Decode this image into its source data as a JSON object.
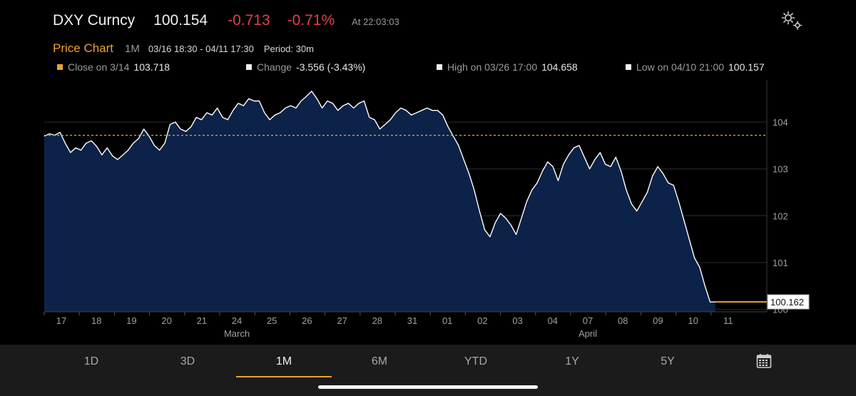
{
  "header": {
    "ticker": "DXY Curncy",
    "last_price": "100.154",
    "change": "-0.713",
    "change_pct": "-0.71%",
    "as_of": "At 22:03:03",
    "settings_icon": "gear-icon"
  },
  "subheader": {
    "title": "Price Chart",
    "range": "1M",
    "dates": "03/16 18:30 - 04/11 17:30",
    "period": "Period: 30m"
  },
  "stats": {
    "close_label": "Close on 3/14",
    "close_value": "103.718",
    "change_label": "Change",
    "change_value": "-3.556 (-3.43%)",
    "high_label": "High on 03/26 17:00",
    "high_value": "104.658",
    "low_label": "Low on 04/10 21:00",
    "low_value": "100.157"
  },
  "colors": {
    "background": "#000000",
    "area_fill": "#0c2248",
    "line": "#ffffff",
    "accent_orange": "#f0a030",
    "negative_red": "#e0404c"
  },
  "chart_data": {
    "type": "area",
    "x_tick_labels": [
      "17",
      "18",
      "19",
      "20",
      "21",
      "24",
      "25",
      "26",
      "27",
      "28",
      "31",
      "01",
      "02",
      "03",
      "04",
      "07",
      "08",
      "09",
      "10",
      "11"
    ],
    "x_month_labels": [
      {
        "label": "March",
        "at": "24"
      },
      {
        "label": "April",
        "at": "07"
      }
    ],
    "y_tick_labels": [
      "100",
      "101",
      "102",
      "103",
      "104"
    ],
    "ylim": [
      99.95,
      104.9
    ],
    "reference_line": {
      "label": "Close on 3/14",
      "value": 103.718,
      "style": "dashed-orange"
    },
    "last_value_label": "100.162",
    "last_value": 100.162,
    "grid": true,
    "series": [
      {
        "values": [
          103.7,
          103.75,
          103.72,
          103.78,
          103.55,
          103.35,
          103.45,
          103.4,
          103.55,
          103.6,
          103.48,
          103.3,
          103.45,
          103.28,
          103.2,
          103.3,
          103.4,
          103.55,
          103.65,
          103.85,
          103.7,
          103.5,
          103.4,
          103.55,
          103.95,
          104.0,
          103.85,
          103.8,
          103.9,
          104.1,
          104.05,
          104.2,
          104.15,
          104.3,
          104.1,
          104.05,
          104.25,
          104.4,
          104.35,
          104.5,
          104.45,
          104.45,
          104.2,
          104.05,
          104.15,
          104.2,
          104.3,
          104.35,
          104.3,
          104.45,
          104.55,
          104.658,
          104.5,
          104.3,
          104.45,
          104.4,
          104.25,
          104.35,
          104.4,
          104.3,
          104.4,
          104.45,
          104.1,
          104.05,
          103.85,
          103.95,
          104.05,
          104.2,
          104.3,
          104.25,
          104.15,
          104.2,
          104.25,
          104.3,
          104.25,
          104.25,
          104.15,
          103.9,
          103.7,
          103.5,
          103.2,
          102.9,
          102.55,
          102.1,
          101.7,
          101.55,
          101.85,
          102.05,
          101.95,
          101.8,
          101.6,
          101.95,
          102.3,
          102.55,
          102.7,
          102.95,
          103.15,
          103.05,
          102.75,
          103.1,
          103.3,
          103.45,
          103.5,
          103.25,
          103.0,
          103.2,
          103.35,
          103.1,
          103.05,
          103.25,
          102.95,
          102.55,
          102.25,
          102.1,
          102.3,
          102.5,
          102.85,
          103.05,
          102.9,
          102.7,
          102.65,
          102.3,
          101.9,
          101.5,
          101.1,
          100.9,
          100.5,
          100.157,
          100.162
        ]
      }
    ]
  },
  "tabs": [
    "1D",
    "3D",
    "1M",
    "6M",
    "YTD",
    "1Y",
    "5Y"
  ],
  "active_tab": "1M",
  "calendar_icon": "calendar-icon"
}
